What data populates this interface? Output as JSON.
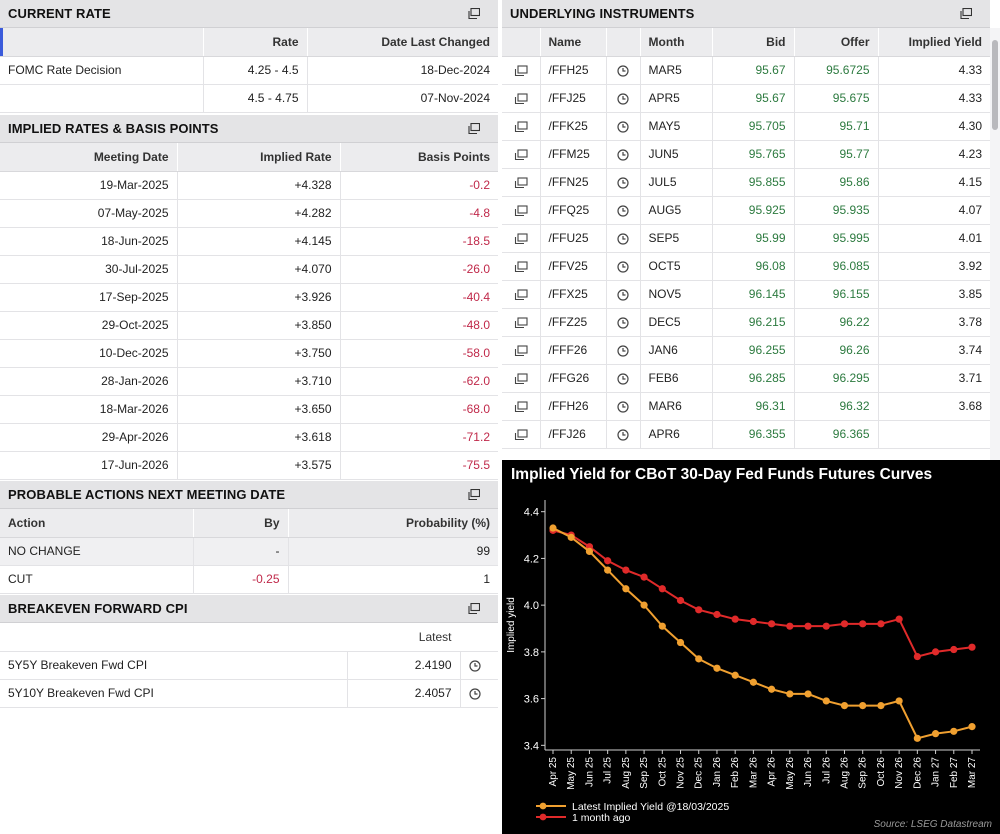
{
  "current_rate": {
    "title": "CURRENT RATE",
    "columns": [
      "",
      "Rate",
      "Date Last Changed"
    ],
    "rows": [
      {
        "label": "FOMC Rate Decision",
        "rate": "4.25 - 4.5",
        "date": "18-Dec-2024"
      },
      {
        "label": "",
        "rate": "4.5 - 4.75",
        "date": "07-Nov-2024"
      }
    ]
  },
  "implied_rates": {
    "title": "IMPLIED RATES & BASIS POINTS",
    "columns": [
      "Meeting Date",
      "Implied Rate",
      "Basis Points"
    ],
    "rows": [
      {
        "date": "19-Mar-2025",
        "rate": "+4.328",
        "bp": "-0.2"
      },
      {
        "date": "07-May-2025",
        "rate": "+4.282",
        "bp": "-4.8"
      },
      {
        "date": "18-Jun-2025",
        "rate": "+4.145",
        "bp": "-18.5"
      },
      {
        "date": "30-Jul-2025",
        "rate": "+4.070",
        "bp": "-26.0"
      },
      {
        "date": "17-Sep-2025",
        "rate": "+3.926",
        "bp": "-40.4"
      },
      {
        "date": "29-Oct-2025",
        "rate": "+3.850",
        "bp": "-48.0"
      },
      {
        "date": "10-Dec-2025",
        "rate": "+3.750",
        "bp": "-58.0"
      },
      {
        "date": "28-Jan-2026",
        "rate": "+3.710",
        "bp": "-62.0"
      },
      {
        "date": "18-Mar-2026",
        "rate": "+3.650",
        "bp": "-68.0"
      },
      {
        "date": "29-Apr-2026",
        "rate": "+3.618",
        "bp": "-71.2"
      },
      {
        "date": "17-Jun-2026",
        "rate": "+3.575",
        "bp": "-75.5"
      }
    ]
  },
  "probable_actions": {
    "title": "PROBABLE ACTIONS NEXT MEETING DATE",
    "columns": [
      "Action",
      "By",
      "Probability (%)"
    ],
    "rows": [
      {
        "action": "NO CHANGE",
        "by": "-",
        "prob": "99"
      },
      {
        "action": "CUT",
        "by": "-0.25",
        "prob": "1"
      }
    ]
  },
  "breakeven": {
    "title": "BREAKEVEN FORWARD CPI",
    "columns": [
      "",
      "Latest",
      ""
    ],
    "rows": [
      {
        "label": "5Y5Y Breakeven Fwd CPI",
        "value": "2.4190"
      },
      {
        "label": "5Y10Y Breakeven Fwd CPI",
        "value": "2.4057"
      }
    ]
  },
  "underlying": {
    "title": "UNDERLYING INSTRUMENTS",
    "columns": [
      "",
      "Name",
      "",
      "Month",
      "Bid",
      "Offer",
      "Implied Yield"
    ],
    "rows": [
      {
        "name": "/FFH25",
        "month": "MAR5",
        "bid": "95.67",
        "offer": "95.6725",
        "yield": "4.33"
      },
      {
        "name": "/FFJ25",
        "month": "APR5",
        "bid": "95.67",
        "offer": "95.675",
        "yield": "4.33"
      },
      {
        "name": "/FFK25",
        "month": "MAY5",
        "bid": "95.705",
        "offer": "95.71",
        "yield": "4.30"
      },
      {
        "name": "/FFM25",
        "month": "JUN5",
        "bid": "95.765",
        "offer": "95.77",
        "yield": "4.23"
      },
      {
        "name": "/FFN25",
        "month": "JUL5",
        "bid": "95.855",
        "offer": "95.86",
        "yield": "4.15"
      },
      {
        "name": "/FFQ25",
        "month": "AUG5",
        "bid": "95.925",
        "offer": "95.935",
        "yield": "4.07"
      },
      {
        "name": "/FFU25",
        "month": "SEP5",
        "bid": "95.99",
        "offer": "95.995",
        "yield": "4.01"
      },
      {
        "name": "/FFV25",
        "month": "OCT5",
        "bid": "96.08",
        "offer": "96.085",
        "yield": "3.92"
      },
      {
        "name": "/FFX25",
        "month": "NOV5",
        "bid": "96.145",
        "offer": "96.155",
        "yield": "3.85"
      },
      {
        "name": "/FFZ25",
        "month": "DEC5",
        "bid": "96.215",
        "offer": "96.22",
        "yield": "3.78"
      },
      {
        "name": "/FFF26",
        "month": "JAN6",
        "bid": "96.255",
        "offer": "96.26",
        "yield": "3.74"
      },
      {
        "name": "/FFG26",
        "month": "FEB6",
        "bid": "96.285",
        "offer": "96.295",
        "yield": "3.71"
      },
      {
        "name": "/FFH26",
        "month": "MAR6",
        "bid": "96.31",
        "offer": "96.32",
        "yield": "3.68"
      },
      {
        "name": "/FFJ26",
        "month": "APR6",
        "bid": "96.355",
        "offer": "96.365",
        "yield": ""
      }
    ]
  },
  "colors": {
    "negative": "#c0294a",
    "bid_offer": "#2c7a3f",
    "header_bg": "#e4e4e6",
    "latest_series": "#f0a030",
    "month_ago_series": "#e02a2a"
  },
  "icons": {
    "popout": "popout-window-icon",
    "clock": "clock-icon",
    "row_popout": "row-popout-icon"
  },
  "chart_data": {
    "type": "line",
    "title": "Implied Yield for CBoT 30-Day Fed Funds Futures Curves",
    "xlabel": "",
    "ylabel": "Implied yield",
    "source": "Source: LSEG Datastream",
    "ylim": [
      3.38,
      4.45
    ],
    "yticks": [
      3.4,
      3.6,
      3.8,
      4.0,
      4.2,
      4.4
    ],
    "grid": false,
    "legend_position": "bottom-left",
    "categories": [
      "Apr 25",
      "May 25",
      "Jun 25",
      "Jul 25",
      "Aug 25",
      "Sep 25",
      "Oct 25",
      "Nov 25",
      "Dec 25",
      "Jan 26",
      "Feb 26",
      "Mar 26",
      "Apr 26",
      "May 26",
      "Jun 26",
      "Jul 26",
      "Aug 26",
      "Sep 26",
      "Oct 26",
      "Nov 26",
      "Dec 26",
      "Jan 27",
      "Feb 27",
      "Mar 27"
    ],
    "series": [
      {
        "name": "Latest Implied Yield @18/03/2025",
        "color": "#f0a030",
        "values": [
          4.33,
          4.29,
          4.23,
          4.15,
          4.07,
          4.0,
          3.91,
          3.84,
          3.77,
          3.73,
          3.7,
          3.67,
          3.64,
          3.62,
          3.62,
          3.59,
          3.57,
          3.57,
          3.57,
          3.59,
          3.43,
          3.45,
          3.46,
          3.48
        ]
      },
      {
        "name": "1 month ago",
        "color": "#e02a2a",
        "values": [
          4.32,
          4.3,
          4.25,
          4.19,
          4.15,
          4.12,
          4.07,
          4.02,
          3.98,
          3.96,
          3.94,
          3.93,
          3.92,
          3.91,
          3.91,
          3.91,
          3.92,
          3.92,
          3.92,
          3.94,
          3.78,
          3.8,
          3.81,
          3.82
        ]
      }
    ]
  }
}
